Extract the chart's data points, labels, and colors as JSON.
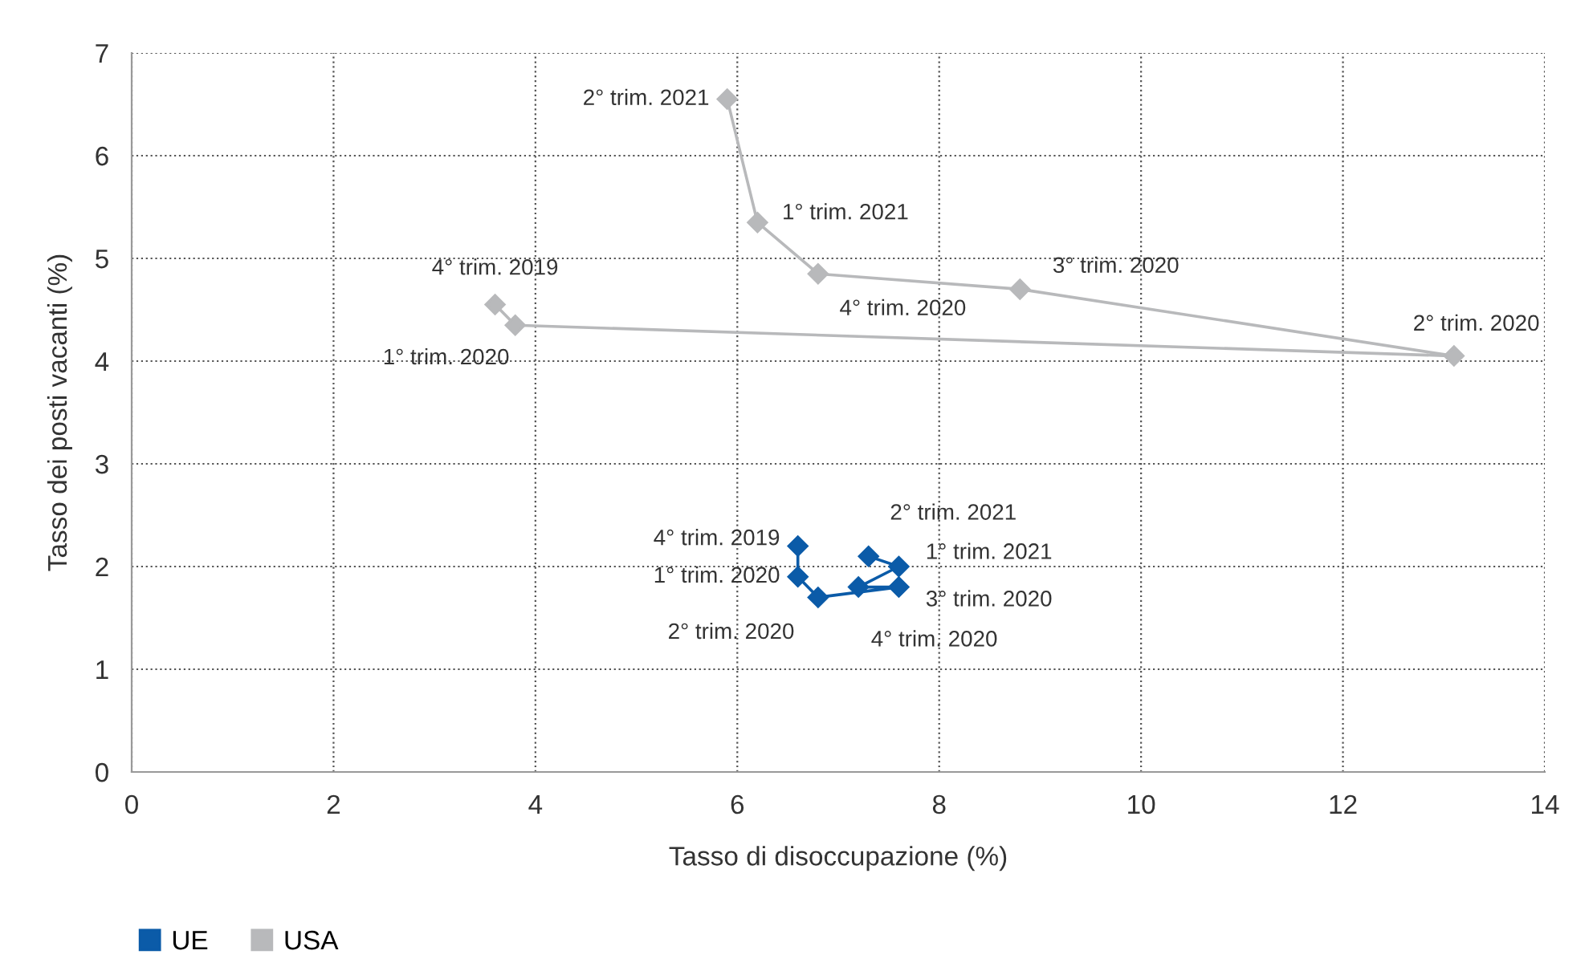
{
  "chart_data": {
    "type": "line",
    "xlabel": "Tasso di disoccupazione (%)",
    "ylabel": "Tasso dei posti vacanti (%)",
    "xlim": [
      0,
      14
    ],
    "xticks": [
      0,
      2,
      4,
      6,
      8,
      10,
      12,
      14
    ],
    "ylim": [
      0,
      7
    ],
    "yticks": [
      0,
      1,
      2,
      3,
      4,
      5,
      6,
      7
    ],
    "grid": true,
    "legend": "bottom left",
    "marker": "diamond",
    "line_style": "solid",
    "series": [
      {
        "name": "UE",
        "color": "#0b5ba8",
        "x": [
          6.6,
          6.6,
          6.8,
          7.6,
          7.2,
          7.6,
          7.3
        ],
        "values": [
          2.2,
          1.9,
          1.7,
          1.8,
          1.8,
          2.0,
          2.1
        ]
      },
      {
        "name": "USA",
        "color": "#b8b9bb",
        "x": [
          3.6,
          3.8,
          13.1,
          8.8,
          6.8,
          6.2,
          5.9
        ],
        "values": [
          4.55,
          4.35,
          4.05,
          4.7,
          4.85,
          5.35,
          6.55
        ]
      }
    ],
    "annotations": [
      {
        "text": "4° trim. 2019",
        "x": 6.6,
        "y": 2.2
      },
      {
        "text": "1° trim. 2020",
        "x": 6.6,
        "y": 1.9
      },
      {
        "text": "2° trim. 2020",
        "x": 6.8,
        "y": 1.7
      },
      {
        "text": "3° trim. 2020",
        "x": 7.6,
        "y": 1.8
      },
      {
        "text": "4° trim. 2020",
        "x": 7.2,
        "y": 1.8
      },
      {
        "text": "1° trim. 2021",
        "x": 7.6,
        "y": 2.0
      },
      {
        "text": "2° trim. 2021",
        "x": 7.3,
        "y": 2.1
      },
      {
        "text": "4° trim. 2019",
        "x": 3.6,
        "y": 4.55
      },
      {
        "text": "1° trim. 2020",
        "x": 3.8,
        "y": 4.35
      },
      {
        "text": "2° trim. 2020",
        "x": 13.1,
        "y": 4.05
      },
      {
        "text": "3° trim. 2020",
        "x": 8.8,
        "y": 4.7
      },
      {
        "text": "4° trim. 2020",
        "x": 6.8,
        "y": 4.85
      },
      {
        "text": "1° trim. 2021",
        "x": 6.2,
        "y": 5.35
      },
      {
        "text": "2° trim. 2021",
        "x": 5.9,
        "y": 6.55
      }
    ]
  }
}
